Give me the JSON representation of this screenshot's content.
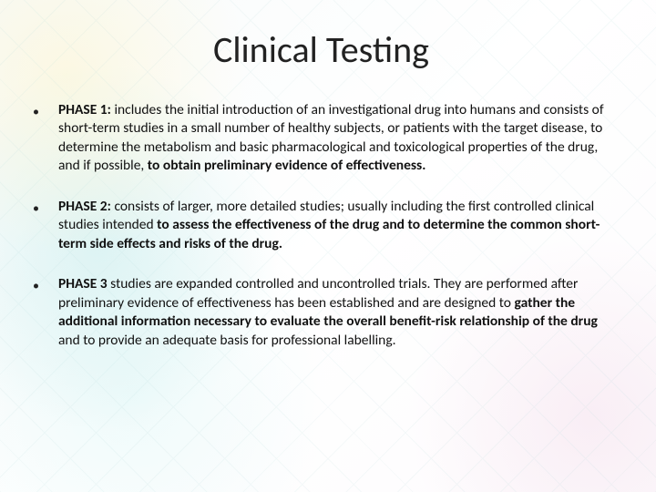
{
  "title": "Clinical Testing",
  "bullets": [
    {
      "phase_label": "PHASE 1:",
      "lead": " includes the initial introduction of an investigational drug into humans and consists of short-term studies in a small number of healthy subjects, or patients with the target disease, to determine the metabolism and basic pharmacological and toxicological properties of the drug, and if possible, ",
      "emph": "to obtain preliminary evidence of effectiveness.",
      "trail": ""
    },
    {
      "phase_label": "PHASE 2:",
      "lead": " consists of larger, more detailed studies; usually including the first controlled clinical studies intended ",
      "emph": "to assess the effectiveness of the drug and to determine the common short-term side effects and risks of the drug.",
      "trail": ""
    },
    {
      "phase_label": "PHASE 3",
      "lead": " studies are expanded controlled and uncontrolled trials. They are performed after preliminary evidence of effectiveness has been established and are designed to ",
      "emph": "gather the additional information necessary to evaluate the overall benefit-risk relationship of the drug",
      "trail": " and to provide an adequate basis for professional labelling."
    }
  ],
  "style": {
    "title_fontsize": 40,
    "body_fontsize": 15.5,
    "text_color": "#111111",
    "title_color": "#222222",
    "background_tints": [
      "#fff0b4",
      "#b4e6e6",
      "#c8f0f0",
      "#e6b4d2"
    ],
    "font_family": "Calibri"
  }
}
